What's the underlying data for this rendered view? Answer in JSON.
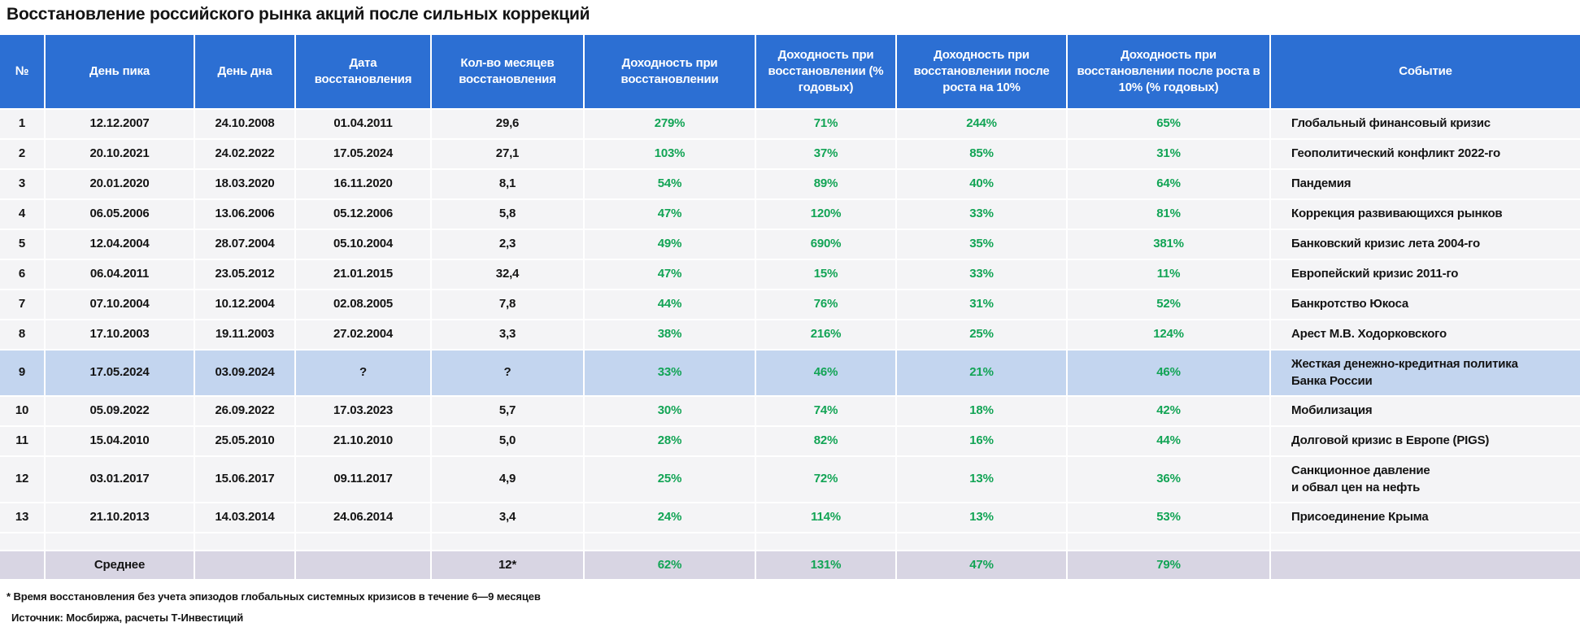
{
  "colors": {
    "header_blue": "#2c6fd3",
    "row_bg": "#f4f4f6",
    "highlight_bg": "#c3d5ef",
    "average_bg": "#d8d5e3",
    "green": "#12a455",
    "text": "#141414"
  },
  "chart_data": {
    "type": "table",
    "title": "Восстановление российского рынка акций после сильных коррекций",
    "columns": [
      "№",
      "День пика",
      "День дна",
      "Дата восстановления",
      "Кол-во месяцев восстановления",
      "Доходность при восстановлении",
      "Доходность при восстановлении (% годовых)",
      "Доходность при восстановлении после роста на 10%",
      "Доходность при восстановлении после роста в 10% (% годовых)",
      "Событие"
    ],
    "rows": [
      {
        "num": "1",
        "peak": "12.12.2007",
        "bottom": "24.10.2008",
        "recovery": "01.04.2011",
        "months": "29,6",
        "ret": "279%",
        "ret_annual": "71%",
        "ret10": "244%",
        "ret10_annual": "65%",
        "event": "Глобальный финансовый кризис",
        "highlight": false
      },
      {
        "num": "2",
        "peak": "20.10.2021",
        "bottom": "24.02.2022",
        "recovery": "17.05.2024",
        "months": "27,1",
        "ret": "103%",
        "ret_annual": "37%",
        "ret10": "85%",
        "ret10_annual": "31%",
        "event": "Геополитический конфликт 2022-го",
        "highlight": false
      },
      {
        "num": "3",
        "peak": "20.01.2020",
        "bottom": "18.03.2020",
        "recovery": "16.11.2020",
        "months": "8,1",
        "ret": "54%",
        "ret_annual": "89%",
        "ret10": "40%",
        "ret10_annual": "64%",
        "event": "Пандемия",
        "highlight": false
      },
      {
        "num": "4",
        "peak": "06.05.2006",
        "bottom": "13.06.2006",
        "recovery": "05.12.2006",
        "months": "5,8",
        "ret": "47%",
        "ret_annual": "120%",
        "ret10": "33%",
        "ret10_annual": "81%",
        "event": "Коррекция развивающихся рынков",
        "highlight": false
      },
      {
        "num": "5",
        "peak": "12.04.2004",
        "bottom": "28.07.2004",
        "recovery": "05.10.2004",
        "months": "2,3",
        "ret": "49%",
        "ret_annual": "690%",
        "ret10": "35%",
        "ret10_annual": "381%",
        "event": "Банковский кризис лета 2004-го",
        "highlight": false
      },
      {
        "num": "6",
        "peak": "06.04.2011",
        "bottom": "23.05.2012",
        "recovery": "21.01.2015",
        "months": "32,4",
        "ret": "47%",
        "ret_annual": "15%",
        "ret10": "33%",
        "ret10_annual": "11%",
        "event": "Европейский кризис 2011-го",
        "highlight": false
      },
      {
        "num": "7",
        "peak": "07.10.2004",
        "bottom": "10.12.2004",
        "recovery": "02.08.2005",
        "months": "7,8",
        "ret": "44%",
        "ret_annual": "76%",
        "ret10": "31%",
        "ret10_annual": "52%",
        "event": "Банкротство Юкоса",
        "highlight": false
      },
      {
        "num": "8",
        "peak": "17.10.2003",
        "bottom": "19.11.2003",
        "recovery": "27.02.2004",
        "months": "3,3",
        "ret": "38%",
        "ret_annual": "216%",
        "ret10": "25%",
        "ret10_annual": "124%",
        "event": "Арест  М.В. Ходорковского",
        "highlight": false
      },
      {
        "num": "9",
        "peak": "17.05.2024",
        "bottom": "03.09.2024",
        "recovery": "?",
        "months": "?",
        "ret": "33%",
        "ret_annual": "46%",
        "ret10": "21%",
        "ret10_annual": "46%",
        "event": "Жесткая денежно-кредитная политика\nБанка России",
        "highlight": true
      },
      {
        "num": "10",
        "peak": "05.09.2022",
        "bottom": "26.09.2022",
        "recovery": "17.03.2023",
        "months": "5,7",
        "ret": "30%",
        "ret_annual": "74%",
        "ret10": "18%",
        "ret10_annual": "42%",
        "event": "Мобилизация",
        "highlight": false
      },
      {
        "num": "11",
        "peak": "15.04.2010",
        "bottom": "25.05.2010",
        "recovery": "21.10.2010",
        "months": "5,0",
        "ret": "28%",
        "ret_annual": "82%",
        "ret10": "16%",
        "ret10_annual": "44%",
        "event": "Долговой кризис в Европе (PIGS)",
        "highlight": false
      },
      {
        "num": "12",
        "peak": "03.01.2017",
        "bottom": "15.06.2017",
        "recovery": "09.11.2017",
        "months": "4,9",
        "ret": "25%",
        "ret_annual": "72%",
        "ret10": "13%",
        "ret10_annual": "36%",
        "event": "Санкционное давление\nи обвал цен на нефть",
        "highlight": false
      },
      {
        "num": "13",
        "peak": "21.10.2013",
        "bottom": "14.03.2014",
        "recovery": "24.06.2014",
        "months": "3,4",
        "ret": "24%",
        "ret_annual": "114%",
        "ret10": "13%",
        "ret10_annual": "53%",
        "event": "Присоединение Крыма",
        "highlight": false
      }
    ],
    "average": {
      "num": "",
      "peak": "Среднее",
      "bottom": "",
      "recovery": "",
      "months": "12*",
      "ret": "62%",
      "ret_annual": "131%",
      "ret10": "47%",
      "ret10_annual": "79%",
      "event": ""
    },
    "footnotes": [
      "* Время восстановления без учета эпизодов глобальных системных кризисов в течение 6—9 месяцев",
      "Источник: Мосбиржа, расчеты Т-Инвестиций"
    ]
  }
}
